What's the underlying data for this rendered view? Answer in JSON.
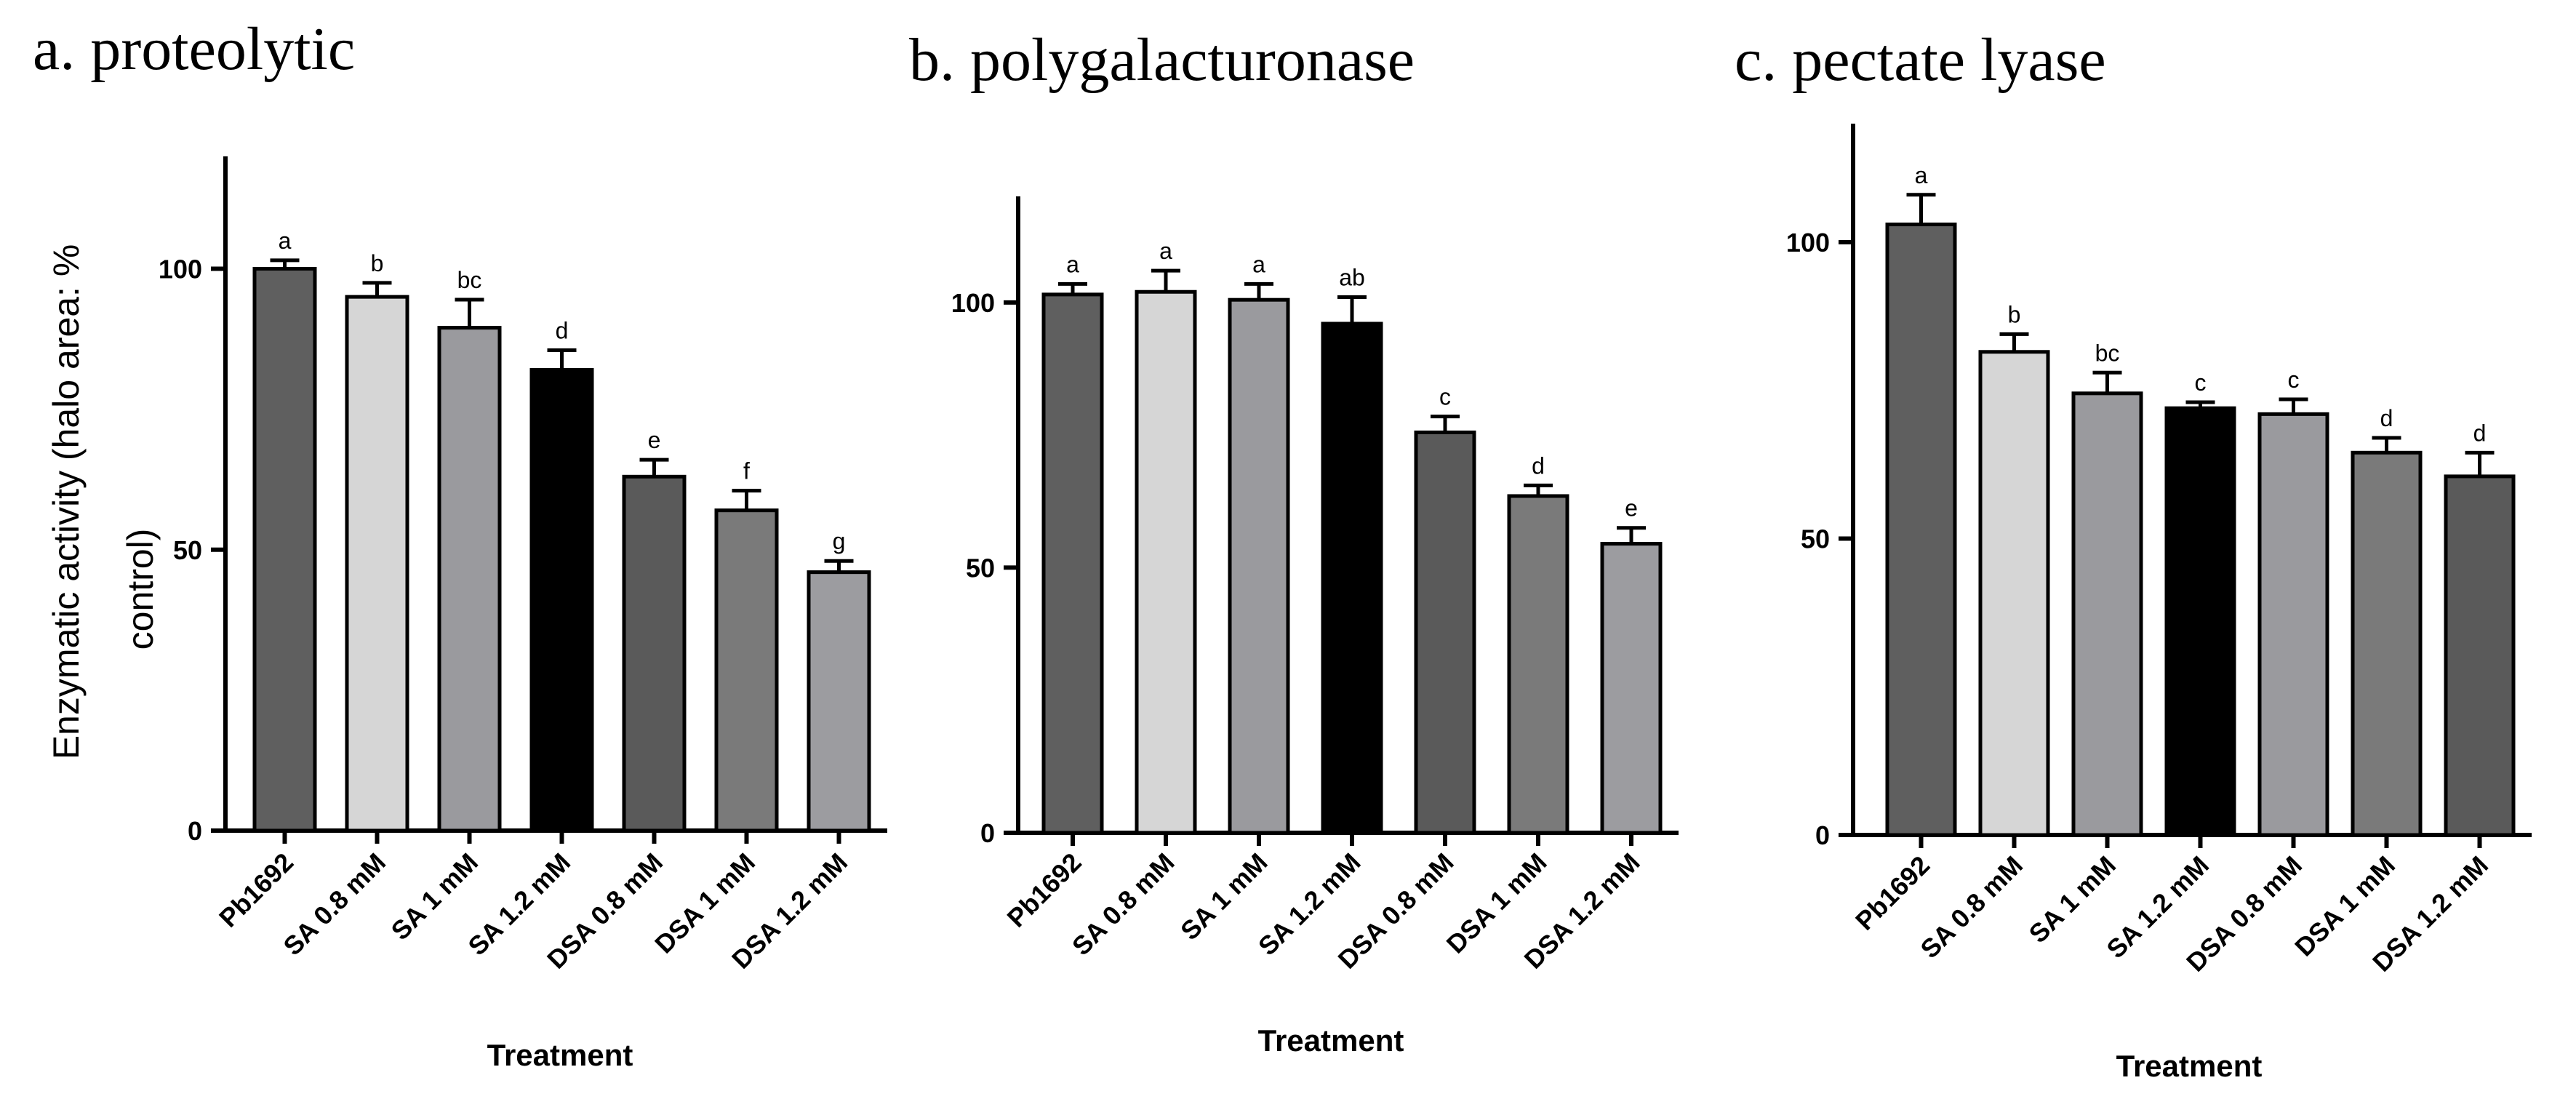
{
  "figure": {
    "shared_ylabel_line1": "Enzymatic activity (halo area: %",
    "shared_ylabel_line2": "control)"
  },
  "chart_data": [
    {
      "type": "bar",
      "title": "a. proteolytic",
      "xlabel": "Treatment",
      "ylabel": "Enzymatic activity (halo area: % control)",
      "ylim": [
        0,
        120
      ],
      "yticks": [
        0,
        50,
        100
      ],
      "categories": [
        "Pb1692",
        "SA 0.8 mM",
        "SA 1 mM",
        "SA 1.2 mM",
        "DSA 0.8 mM",
        "DSA 1 mM",
        "DSA 1.2 mM"
      ],
      "values": [
        100,
        95,
        89.5,
        82,
        63,
        57,
        46
      ],
      "errors": [
        1.5,
        2.5,
        5,
        3.5,
        3,
        3.5,
        2
      ],
      "significance": [
        "a",
        "b",
        "bc",
        "d",
        "e",
        "f",
        "g"
      ],
      "colors": [
        "#5f5f5f",
        "#d6d6d6",
        "#9a9a9e",
        "#000000",
        "#5a5a5a",
        "#7a7a7a",
        "#9c9ca0"
      ]
    },
    {
      "type": "bar",
      "title": "b. polygalacturonase",
      "xlabel": "Treatment",
      "ylabel": "",
      "ylim": [
        0,
        120
      ],
      "yticks": [
        0,
        50,
        100
      ],
      "categories": [
        "Pb1692",
        "SA 0.8 mM",
        "SA 1 mM",
        "SA 1.2 mM",
        "DSA 0.8 mM",
        "DSA 1 mM",
        "DSA 1.2 mM"
      ],
      "values": [
        101.5,
        102,
        100.5,
        96,
        75.5,
        63.5,
        54.5
      ],
      "errors": [
        2,
        4,
        3,
        5,
        3,
        2,
        3
      ],
      "significance": [
        "a",
        "a",
        "a",
        "ab",
        "c",
        "d",
        "e"
      ],
      "colors": [
        "#5f5f5f",
        "#d6d6d6",
        "#9a9a9e",
        "#000000",
        "#5a5a5a",
        "#7a7a7a",
        "#9c9ca0"
      ]
    },
    {
      "type": "bar",
      "title": "c. pectate lyase",
      "xlabel": "Treatment",
      "ylabel": "",
      "ylim": [
        0,
        120
      ],
      "yticks": [
        0,
        50,
        100
      ],
      "categories": [
        "Pb1692",
        "SA 0.8 mM",
        "SA 1 mM",
        "SA 1.2 mM",
        "DSA 0.8 mM",
        "DSA 1 mM",
        "DSA 1.2 mM"
      ],
      "values": [
        103,
        81.5,
        74.5,
        72,
        71,
        64.5,
        60.5
      ],
      "errors": [
        5,
        3,
        3.5,
        1,
        2.5,
        2.5,
        4
      ],
      "significance": [
        "a",
        "b",
        "bc",
        "c",
        "c",
        "d",
        "d"
      ],
      "colors": [
        "#5f5f5f",
        "#d6d6d6",
        "#9a9a9e",
        "#000000",
        "#9a9a9e",
        "#7a7a7a",
        "#5a5a5a"
      ]
    }
  ]
}
